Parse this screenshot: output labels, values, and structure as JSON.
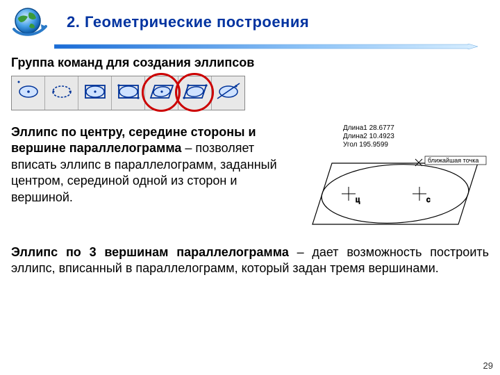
{
  "header": {
    "title": "2. Геометрические построения",
    "title_color": "#0033a0",
    "arrow_gradient": [
      "#1a6bd6",
      "#8fc4f7",
      "#d8eeff"
    ]
  },
  "subtitle": "Группа команд для создания эллипсов",
  "toolbar": {
    "bg": "#e8e8e8",
    "border": "#888888",
    "icon_stroke": "#003399",
    "icon_fill": "#cfe2ff",
    "highlight_color": "#cc0000",
    "icons": [
      {
        "name": "ellipse-center-axes"
      },
      {
        "name": "ellipse-diagonal"
      },
      {
        "name": "ellipse-rect-center"
      },
      {
        "name": "ellipse-rect-diagonal"
      },
      {
        "name": "ellipse-parallelogram-center"
      },
      {
        "name": "ellipse-parallelogram-3pt"
      },
      {
        "name": "ellipse-tangent"
      }
    ],
    "highlight_indices": [
      4,
      5
    ]
  },
  "paragraph1": {
    "bold": "Эллипс по центру, середине стороны и вершине параллелограмма",
    "rest": " – позволяет вписать эллипс в параллелограмм, заданный центром, серединой одной из сторон и вершиной."
  },
  "diagram": {
    "label1": "Длина1 28.6777",
    "label2": "Длина2 10.4923",
    "label3": "Угол   195.9599",
    "snap_label": "ближайшая точка",
    "cursor1": "ц",
    "cursor2": "с",
    "stroke": "#000000"
  },
  "paragraph2": {
    "bold": "Эллипс по 3 вершинам параллелограмма",
    "rest": " – дает возможность построить эллипс, вписанный в параллелограмм, который задан тремя вершинами."
  },
  "page_number": "29"
}
